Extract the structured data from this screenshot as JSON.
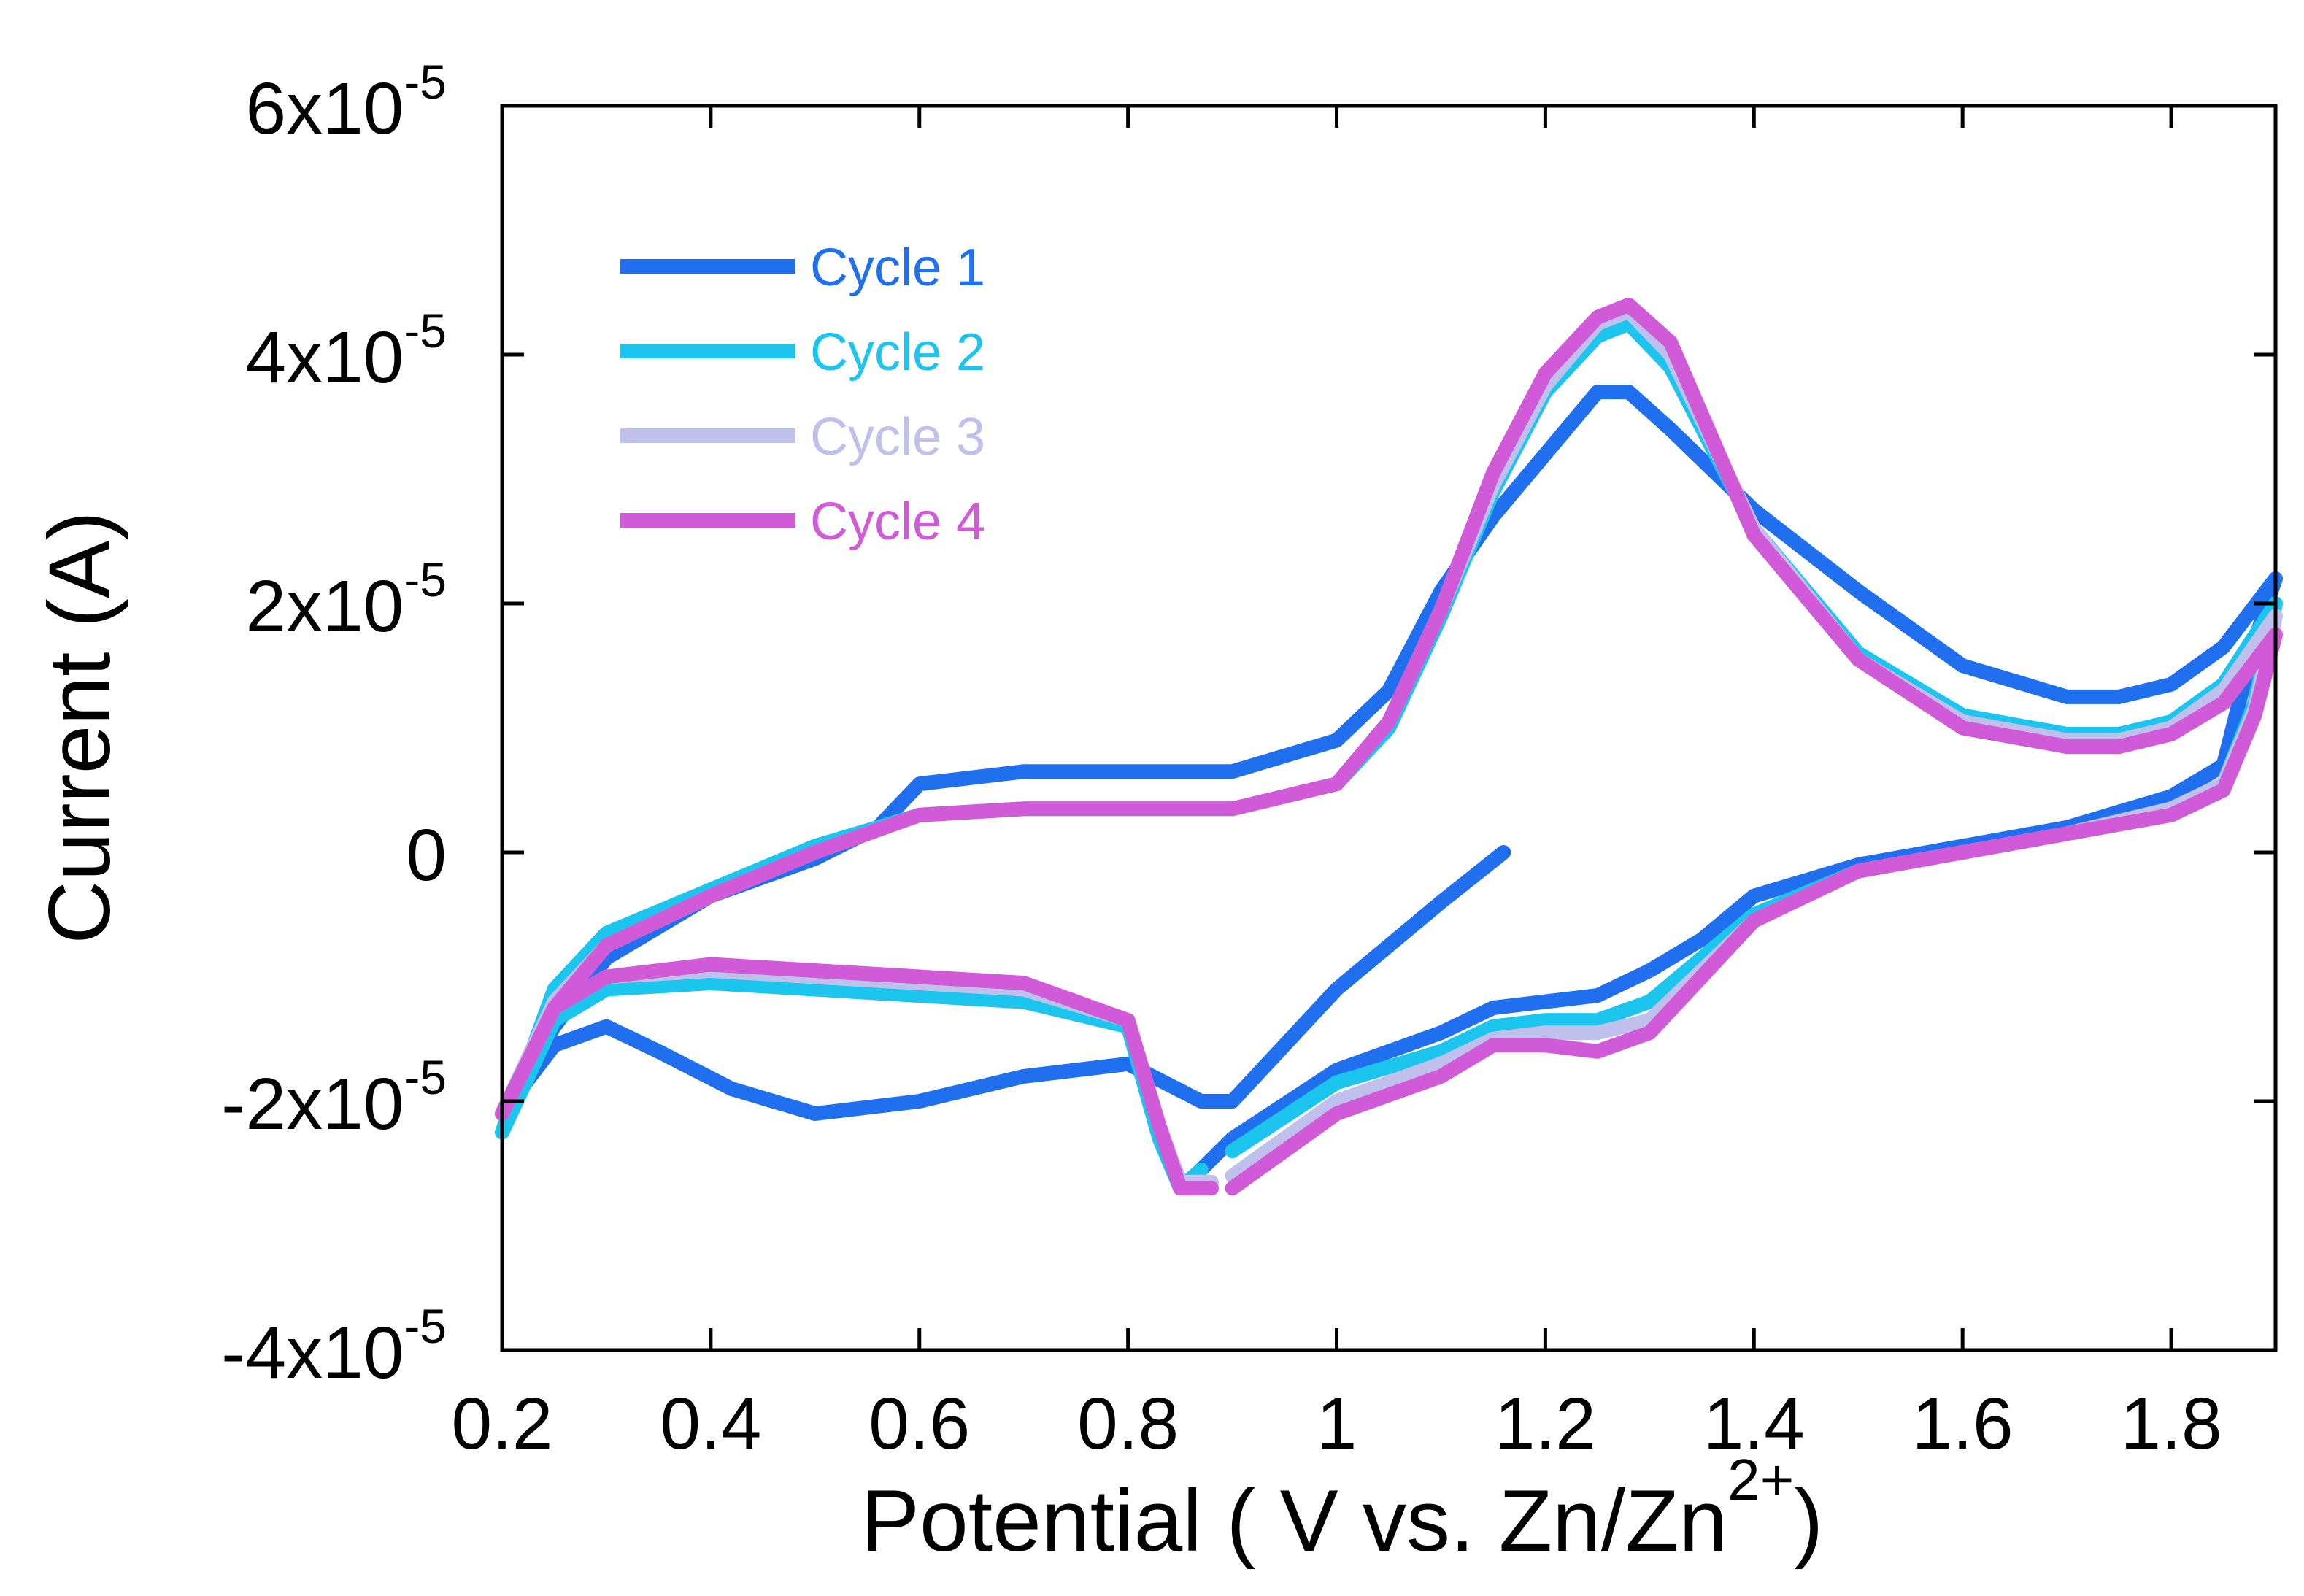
{
  "chart_data": {
    "type": "line",
    "title": "",
    "xlabel": "Potential ( V vs. Zn/Zn",
    "xlabel_sup": "2+",
    "xlabel_close": ")",
    "ylabel": "Current (A)",
    "xlim": [
      0.2,
      1.9
    ],
    "ylim": [
      -4e-05,
      6e-05
    ],
    "x_ticks": [
      {
        "value": 0.2,
        "label": "0.2"
      },
      {
        "value": 0.4,
        "label": "0.4"
      },
      {
        "value": 0.6,
        "label": "0.6"
      },
      {
        "value": 0.8,
        "label": "0.8"
      },
      {
        "value": 1.0,
        "label": "1"
      },
      {
        "value": 1.2,
        "label": "1.2"
      },
      {
        "value": 1.4,
        "label": "1.4"
      },
      {
        "value": 1.6,
        "label": "1.6"
      },
      {
        "value": 1.8,
        "label": "1.8"
      }
    ],
    "y_ticks": [
      {
        "value": 6e-05,
        "mantissa": "6x10",
        "exp": "-5"
      },
      {
        "value": 4e-05,
        "mantissa": "4x10",
        "exp": "-5"
      },
      {
        "value": 2e-05,
        "mantissa": "2x10",
        "exp": "-5"
      },
      {
        "value": 0,
        "mantissa": "0",
        "exp": ""
      },
      {
        "value": -2e-05,
        "mantissa": "-2x10",
        "exp": "-5"
      },
      {
        "value": -4e-05,
        "mantissa": "-4x10",
        "exp": "-5"
      }
    ],
    "grid": false,
    "legend_position": "top-left",
    "series": [
      {
        "name": "Cycle 1",
        "color": "#1f6fee",
        "points": [
          [
            1.16,
            0.0
          ],
          [
            1.1,
            -4e-06
          ],
          [
            1.0,
            -1.1e-05
          ],
          [
            0.9,
            -2e-05
          ],
          [
            0.87,
            -2e-05
          ],
          [
            0.8,
            -1.7e-05
          ],
          [
            0.7,
            -1.8e-05
          ],
          [
            0.6,
            -2e-05
          ],
          [
            0.5,
            -2.1e-05
          ],
          [
            0.42,
            -1.9e-05
          ],
          [
            0.35,
            -1.6e-05
          ],
          [
            0.3,
            -1.4e-05
          ],
          [
            0.25,
            -1.55e-05
          ],
          [
            0.2,
            -2.1e-05
          ],
          [
            0.25,
            -1.4e-05
          ],
          [
            0.3,
            -8.5e-06
          ],
          [
            0.4,
            -3.5e-06
          ],
          [
            0.5,
            -5e-07
          ],
          [
            0.56,
            2e-06
          ],
          [
            0.6,
            5.5e-06
          ],
          [
            0.7,
            6.5e-06
          ],
          [
            0.8,
            6.5e-06
          ],
          [
            0.9,
            6.5e-06
          ],
          [
            1.0,
            9e-06
          ],
          [
            1.05,
            1.3e-05
          ],
          [
            1.1,
            2.1e-05
          ],
          [
            1.15,
            2.7e-05
          ],
          [
            1.2,
            3.2e-05
          ],
          [
            1.25,
            3.7e-05
          ],
          [
            1.28,
            3.7e-05
          ],
          [
            1.32,
            3.4e-05
          ],
          [
            1.4,
            2.75e-05
          ],
          [
            1.5,
            2.1e-05
          ],
          [
            1.6,
            1.5e-05
          ],
          [
            1.7,
            1.25e-05
          ],
          [
            1.75,
            1.25e-05
          ],
          [
            1.8,
            1.35e-05
          ],
          [
            1.85,
            1.65e-05
          ],
          [
            1.9,
            2.2e-05
          ],
          [
            1.88,
            1.7e-05
          ],
          [
            1.85,
            7e-06
          ],
          [
            1.8,
            4.5e-06
          ],
          [
            1.7,
            2e-06
          ],
          [
            1.6,
            5e-07
          ],
          [
            1.5,
            -1e-06
          ],
          [
            1.4,
            -3.5e-06
          ],
          [
            1.35,
            -7e-06
          ],
          [
            1.3,
            -9.5e-06
          ],
          [
            1.25,
            -1.15e-05
          ],
          [
            1.2,
            -1.2e-05
          ],
          [
            1.15,
            -1.25e-05
          ],
          [
            1.1,
            -1.45e-05
          ],
          [
            1.0,
            -1.75e-05
          ],
          [
            0.9,
            -2.3e-05
          ],
          [
            0.87,
            -2.55e-05
          ]
        ]
      },
      {
        "name": "Cycle 2",
        "color": "#1bc5ee",
        "points": [
          [
            0.87,
            -2.55e-05
          ],
          [
            0.85,
            -2.7e-05
          ],
          [
            0.83,
            -2.3e-05
          ],
          [
            0.8,
            -1.4e-05
          ],
          [
            0.7,
            -1.2e-05
          ],
          [
            0.6,
            -1.15e-05
          ],
          [
            0.5,
            -1.1e-05
          ],
          [
            0.4,
            -1.05e-05
          ],
          [
            0.3,
            -1.1e-05
          ],
          [
            0.25,
            -1.35e-05
          ],
          [
            0.2,
            -2.25e-05
          ],
          [
            0.25,
            -1.1e-05
          ],
          [
            0.3,
            -6.5e-06
          ],
          [
            0.4,
            -3e-06
          ],
          [
            0.5,
            5e-07
          ],
          [
            0.6,
            3e-06
          ],
          [
            0.7,
            3.5e-06
          ],
          [
            0.8,
            3.5e-06
          ],
          [
            0.9,
            3.5e-06
          ],
          [
            1.0,
            5.5e-06
          ],
          [
            1.05,
            1e-05
          ],
          [
            1.1,
            1.9e-05
          ],
          [
            1.15,
            2.9e-05
          ],
          [
            1.2,
            3.7e-05
          ],
          [
            1.25,
            4.15e-05
          ],
          [
            1.28,
            4.25e-05
          ],
          [
            1.32,
            3.9e-05
          ],
          [
            1.4,
            2.6e-05
          ],
          [
            1.5,
            1.6e-05
          ],
          [
            1.6,
            1.1e-05
          ],
          [
            1.7,
            9.5e-06
          ],
          [
            1.75,
            9.5e-06
          ],
          [
            1.8,
            1.05e-05
          ],
          [
            1.85,
            1.35e-05
          ],
          [
            1.9,
            2e-05
          ],
          [
            1.88,
            1.2e-05
          ],
          [
            1.85,
            5.5e-06
          ],
          [
            1.8,
            3.5e-06
          ],
          [
            1.7,
            1.5e-06
          ],
          [
            1.6,
            0.0
          ],
          [
            1.5,
            -1.5e-06
          ],
          [
            1.4,
            -5e-06
          ],
          [
            1.35,
            -8.5e-06
          ],
          [
            1.3,
            -1.2e-05
          ],
          [
            1.25,
            -1.35e-05
          ],
          [
            1.2,
            -1.35e-05
          ],
          [
            1.15,
            -1.4e-05
          ],
          [
            1.1,
            -1.6e-05
          ],
          [
            1.0,
            -1.85e-05
          ],
          [
            0.9,
            -2.4e-05
          ]
        ]
      },
      {
        "name": "Cycle 3",
        "color": "#c0c0ec",
        "points": [
          [
            0.88,
            -2.65e-05
          ],
          [
            0.85,
            -2.65e-05
          ],
          [
            0.83,
            -2.2e-05
          ],
          [
            0.8,
            -1.35e-05
          ],
          [
            0.7,
            -1.1e-05
          ],
          [
            0.6,
            -1.05e-05
          ],
          [
            0.5,
            -1e-05
          ],
          [
            0.4,
            -9.5e-06
          ],
          [
            0.3,
            -1e-05
          ],
          [
            0.25,
            -1.25e-05
          ],
          [
            0.2,
            -2.1e-05
          ],
          [
            0.25,
            -1.2e-05
          ],
          [
            0.3,
            -7.5e-06
          ],
          [
            0.4,
            -3.5e-06
          ],
          [
            0.5,
            0.0
          ],
          [
            0.6,
            3e-06
          ],
          [
            0.7,
            3.5e-06
          ],
          [
            0.8,
            3.5e-06
          ],
          [
            0.9,
            3.5e-06
          ],
          [
            1.0,
            5.5e-06
          ],
          [
            1.05,
            1.05e-05
          ],
          [
            1.1,
            1.95e-05
          ],
          [
            1.15,
            2.95e-05
          ],
          [
            1.2,
            3.75e-05
          ],
          [
            1.25,
            4.25e-05
          ],
          [
            1.28,
            4.35e-05
          ],
          [
            1.32,
            4e-05
          ],
          [
            1.4,
            2.6e-05
          ],
          [
            1.5,
            1.55e-05
          ],
          [
            1.6,
            1.05e-05
          ],
          [
            1.7,
            9e-06
          ],
          [
            1.75,
            9e-06
          ],
          [
            1.8,
            1e-05
          ],
          [
            1.85,
            1.3e-05
          ],
          [
            1.9,
            1.9e-05
          ],
          [
            1.88,
            1.15e-05
          ],
          [
            1.85,
            5.5e-06
          ],
          [
            1.8,
            3.5e-06
          ],
          [
            1.7,
            1.5e-06
          ],
          [
            1.6,
            0.0
          ],
          [
            1.5,
            -1.5e-06
          ],
          [
            1.4,
            -5.5e-06
          ],
          [
            1.35,
            -9.5e-06
          ],
          [
            1.3,
            -1.35e-05
          ],
          [
            1.25,
            -1.45e-05
          ],
          [
            1.2,
            -1.45e-05
          ],
          [
            1.15,
            -1.5e-05
          ],
          [
            1.1,
            -1.7e-05
          ],
          [
            1.0,
            -2e-05
          ],
          [
            0.9,
            -2.6e-05
          ]
        ]
      },
      {
        "name": "Cycle 4",
        "color": "#d05ad8",
        "points": [
          [
            0.88,
            -2.7e-05
          ],
          [
            0.85,
            -2.7e-05
          ],
          [
            0.83,
            -2.2e-05
          ],
          [
            0.8,
            -1.35e-05
          ],
          [
            0.75,
            -1.2e-05
          ],
          [
            0.7,
            -1.05e-05
          ],
          [
            0.6,
            -1e-05
          ],
          [
            0.5,
            -9.5e-06
          ],
          [
            0.4,
            -9e-06
          ],
          [
            0.3,
            -1e-05
          ],
          [
            0.25,
            -1.25e-05
          ],
          [
            0.2,
            -2.1e-05
          ],
          [
            0.25,
            -1.25e-05
          ],
          [
            0.3,
            -7.5e-06
          ],
          [
            0.4,
            -3.5e-06
          ],
          [
            0.5,
            0.0
          ],
          [
            0.6,
            3e-06
          ],
          [
            0.7,
            3.5e-06
          ],
          [
            0.8,
            3.5e-06
          ],
          [
            0.9,
            3.5e-06
          ],
          [
            1.0,
            5.5e-06
          ],
          [
            1.05,
            1.05e-05
          ],
          [
            1.1,
            1.95e-05
          ],
          [
            1.15,
            3.05e-05
          ],
          [
            1.2,
            3.85e-05
          ],
          [
            1.25,
            4.3e-05
          ],
          [
            1.28,
            4.4e-05
          ],
          [
            1.32,
            4.1e-05
          ],
          [
            1.4,
            2.55e-05
          ],
          [
            1.5,
            1.55e-05
          ],
          [
            1.6,
            1e-05
          ],
          [
            1.7,
            8.5e-06
          ],
          [
            1.75,
            8.5e-06
          ],
          [
            1.8,
            9.5e-06
          ],
          [
            1.85,
            1.2e-05
          ],
          [
            1.9,
            1.75e-05
          ],
          [
            1.88,
            1.1e-05
          ],
          [
            1.85,
            5e-06
          ],
          [
            1.8,
            3e-06
          ],
          [
            1.7,
            1.5e-06
          ],
          [
            1.6,
            0.0
          ],
          [
            1.5,
            -1.5e-06
          ],
          [
            1.4,
            -5.5e-06
          ],
          [
            1.35,
            -1e-05
          ],
          [
            1.3,
            -1.45e-05
          ],
          [
            1.25,
            -1.6e-05
          ],
          [
            1.2,
            -1.55e-05
          ],
          [
            1.15,
            -1.55e-05
          ],
          [
            1.1,
            -1.8e-05
          ],
          [
            1.0,
            -2.1e-05
          ],
          [
            0.9,
            -2.7e-05
          ]
        ]
      }
    ]
  }
}
